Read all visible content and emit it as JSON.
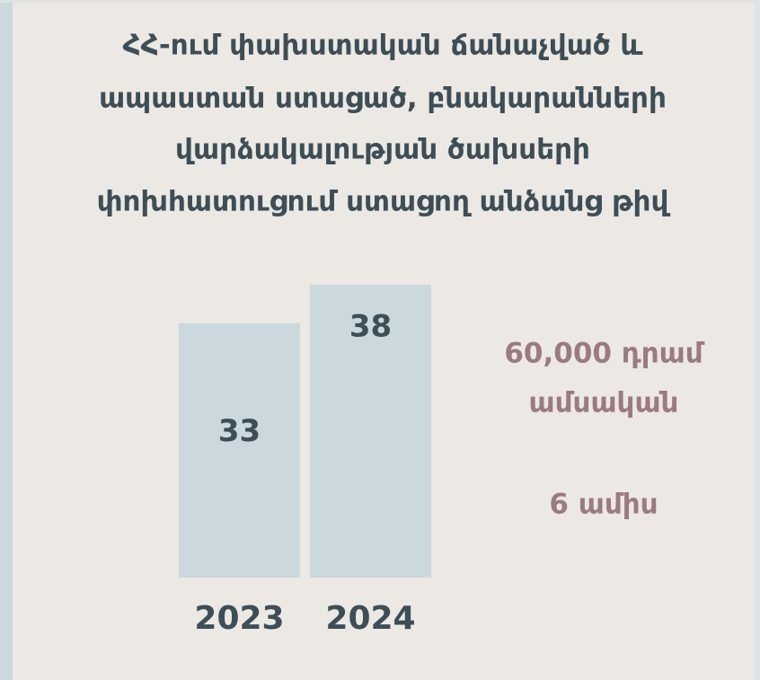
{
  "chart_data": {
    "type": "bar",
    "title": [
      "ՀՀ-ում փախստական ճանաչված և",
      "ապաստան ստացած, բնակարանների",
      "վարձակալության  ծախսերի",
      "փոխհատուցում ստացող անձանց թիվ"
    ],
    "categories": [
      "2023",
      "2024"
    ],
    "values": [
      33,
      38
    ],
    "color": "#cbd8de",
    "annotations": [
      "60,000 դրամ",
      "ամսական",
      "6 ամիս"
    ]
  }
}
